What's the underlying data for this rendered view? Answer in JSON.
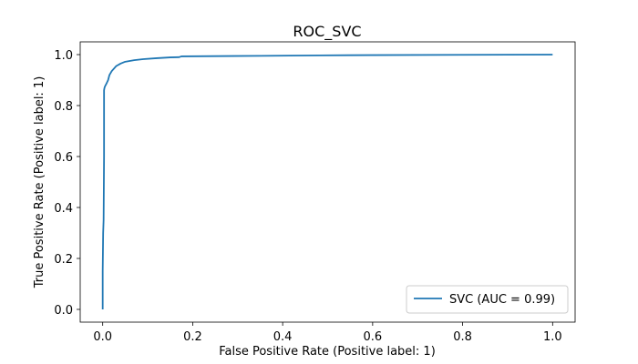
{
  "chart_data": {
    "type": "line",
    "title": "ROC_SVC",
    "xlabel": "False Positive Rate (Positive label: 1)",
    "ylabel": "True Positive Rate (Positive label: 1)",
    "xlim": [
      -0.05,
      1.05
    ],
    "ylim": [
      -0.05,
      1.05
    ],
    "xticks": [
      0.0,
      0.2,
      0.4,
      0.6,
      0.8,
      1.0
    ],
    "yticks": [
      0.0,
      0.2,
      0.4,
      0.6,
      0.8,
      1.0
    ],
    "xtick_labels": [
      "0.0",
      "0.2",
      "0.4",
      "0.6",
      "0.8",
      "1.0"
    ],
    "ytick_labels": [
      "0.0",
      "0.2",
      "0.4",
      "0.6",
      "0.8",
      "1.0"
    ],
    "grid": false,
    "legend_position": "lower-right",
    "series": [
      {
        "name": "SVC (AUC = 0.99)",
        "color": "#1f77b4",
        "x": [
          0.0,
          0.0,
          0.001,
          0.002,
          0.003,
          0.003,
          0.004,
          0.005,
          0.008,
          0.012,
          0.015,
          0.02,
          0.03,
          0.04,
          0.05,
          0.07,
          0.09,
          0.12,
          0.15,
          0.17,
          0.175,
          0.25,
          0.35,
          0.48,
          0.6,
          0.8,
          1.0
        ],
        "y": [
          0.0,
          0.15,
          0.3,
          0.35,
          0.6,
          0.86,
          0.87,
          0.875,
          0.885,
          0.9,
          0.92,
          0.935,
          0.955,
          0.965,
          0.972,
          0.978,
          0.982,
          0.986,
          0.989,
          0.99,
          0.993,
          0.994,
          0.995,
          0.997,
          0.998,
          0.999,
          1.0
        ]
      }
    ]
  }
}
